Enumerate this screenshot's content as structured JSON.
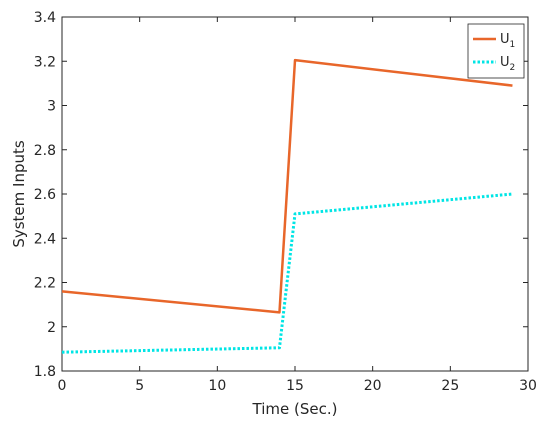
{
  "chart_data": {
    "type": "line",
    "xlabel": "Time (Sec.)",
    "ylabel": "System Inputs",
    "xlim": [
      0,
      30
    ],
    "ylim": [
      1.8,
      3.4
    ],
    "xticks": [
      "0",
      "5",
      "10",
      "15",
      "20",
      "25",
      "30"
    ],
    "yticks": [
      "1.8",
      "2",
      "2.2",
      "2.4",
      "2.6",
      "2.8",
      "3",
      "3.2",
      "3.4"
    ],
    "grid": false,
    "legend_position": "top-right",
    "series": [
      {
        "name": "U1",
        "label_base": "U",
        "label_sub": "1",
        "color": "#E8662A",
        "style": "solid",
        "x": [
          0,
          14,
          15,
          29
        ],
        "y": [
          2.16,
          2.065,
          3.205,
          3.09
        ]
      },
      {
        "name": "U2",
        "label_base": "U",
        "label_sub": "2",
        "color": "#00E5E5",
        "style": "dotted",
        "x": [
          0,
          14,
          15,
          29
        ],
        "y": [
          1.885,
          1.905,
          2.51,
          2.6
        ]
      }
    ]
  }
}
